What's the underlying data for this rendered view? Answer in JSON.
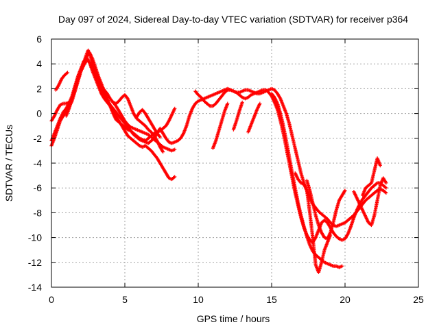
{
  "chart_data": {
    "type": "scatter",
    "title": "Day 097 of 2024, Sidereal Day-to-day VTEC variation (SDTVAR) for receiver p364",
    "xlabel": "GPS time / hours",
    "ylabel": "SDTVAR / TECUs",
    "xlim": [
      0,
      25
    ],
    "ylim": [
      -14,
      6
    ],
    "xticks": [
      "0",
      "5",
      "10",
      "15",
      "20",
      "25"
    ],
    "yticks": [
      "-14",
      "-12",
      "-10",
      "-8",
      "-6",
      "-4",
      "-2",
      "0",
      "2",
      "4",
      "6"
    ],
    "grid": true,
    "legend": "none",
    "marker": "plus",
    "color": "#ff0000",
    "series": [
      {
        "x": [
          0.0,
          0.2,
          0.4,
          0.6,
          0.8,
          1.0,
          1.2,
          1.4,
          1.6,
          1.8,
          2.0,
          2.2,
          2.4,
          2.5,
          2.6,
          2.8,
          3.0,
          3.2,
          3.4,
          3.6,
          3.8,
          4.0,
          4.2,
          4.4,
          4.6,
          4.8,
          5.0,
          5.2,
          5.4,
          5.6,
          5.8,
          6.0,
          6.2,
          6.4,
          6.6,
          6.8,
          7.0,
          7.2,
          7.4,
          7.6,
          7.8,
          8.0,
          8.2,
          8.4,
          8.6,
          8.8,
          9.0,
          9.2,
          9.4,
          9.6,
          9.8,
          10.0,
          10.2,
          10.4,
          10.6,
          10.8,
          11.0,
          11.2,
          11.4,
          11.6,
          11.8,
          12.0,
          12.2,
          12.4,
          12.6,
          12.8,
          13.0,
          13.2,
          13.4,
          13.6,
          13.8,
          14.0,
          14.2,
          14.4,
          14.6,
          14.8,
          15.0,
          15.2,
          15.4,
          15.6,
          15.8,
          16.0,
          16.2,
          16.4,
          16.6,
          16.8,
          17.0,
          17.2,
          17.4,
          17.6,
          17.8,
          18.0,
          18.2,
          18.4,
          18.6,
          18.8,
          19.0,
          19.2,
          19.4,
          19.6,
          19.8,
          20.0,
          20.2,
          20.4,
          20.6,
          20.8,
          21.0,
          21.2,
          21.4,
          21.6,
          21.8,
          22.0,
          22.2,
          22.4,
          22.6,
          22.8
        ],
        "y": [
          -2.6,
          -2.0,
          -1.3,
          -0.6,
          -0.2,
          0.2,
          0.5,
          1.0,
          1.8,
          2.6,
          3.4,
          4.1,
          4.8,
          5.1,
          4.8,
          4.0,
          3.2,
          2.6,
          2.0,
          1.5,
          1.1,
          0.7,
          0.4,
          0.1,
          -0.2,
          -0.5,
          -0.8,
          -1.1,
          -1.4,
          -1.7,
          -1.9,
          -2.1,
          -2.2,
          -2.3,
          -2.4,
          -2.2,
          -2.0,
          -1.6,
          -1.2,
          -1.6,
          -2.0,
          -2.3,
          -2.4,
          -2.3,
          -2.2,
          -2.0,
          -1.6,
          -1.0,
          -0.2,
          0.4,
          0.8,
          1.0,
          1.1,
          1.2,
          1.3,
          1.4,
          1.5,
          1.6,
          1.7,
          1.8,
          1.9,
          2.0,
          1.9,
          1.8,
          1.7,
          1.7,
          1.8,
          1.9,
          1.9,
          1.8,
          1.7,
          1.6,
          1.6,
          1.7,
          1.8,
          1.9,
          2.0,
          1.9,
          1.6,
          1.2,
          0.6,
          0.0,
          -0.8,
          -1.8,
          -2.8,
          -3.8,
          -4.8,
          -5.6,
          -6.2,
          -6.8,
          -7.3,
          -7.6,
          -7.9,
          -8.1,
          -8.3,
          -8.5,
          -8.8,
          -9.0,
          -9.1,
          -9.0,
          -8.9,
          -8.8,
          -8.6,
          -8.4,
          -8.2,
          -7.9,
          -7.6,
          -7.3,
          -7.0,
          -6.8,
          -6.6,
          -6.4,
          -6.2,
          -6.1,
          -6.2,
          -6.4
        ]
      },
      {
        "x": [
          0.0,
          0.2,
          0.4,
          0.6,
          0.8,
          1.0,
          1.2,
          1.4,
          1.6,
          1.8,
          2.0,
          2.2,
          2.4,
          2.6,
          2.8,
          3.0,
          3.2,
          3.4,
          3.6,
          3.8,
          4.0,
          4.2,
          4.4,
          4.6,
          4.8,
          5.0,
          5.2,
          5.4,
          5.6,
          5.8,
          6.0,
          6.2,
          6.4,
          6.6,
          6.8,
          7.0,
          7.2,
          7.4,
          7.6,
          7.8,
          8.0,
          8.2,
          8.4
        ],
        "y": [
          -2.2,
          -1.6,
          -1.0,
          -0.4,
          0.1,
          0.4,
          0.8,
          1.4,
          2.2,
          3.0,
          3.6,
          4.2,
          4.5,
          4.1,
          3.4,
          2.8,
          2.2,
          1.6,
          1.2,
          0.9,
          0.6,
          0.2,
          -0.2,
          -0.6,
          -1.0,
          -1.4,
          -1.8,
          -2.0,
          -2.2,
          -2.4,
          -2.6,
          -2.7,
          -2.6,
          -2.8,
          -3.0,
          -3.3,
          -3.6,
          -4.0,
          -4.4,
          -4.8,
          -5.2,
          -5.3,
          -5.1
        ]
      },
      {
        "x": [
          0.0,
          0.2,
          0.4,
          0.6,
          0.8,
          1.0,
          1.2,
          1.4,
          1.6,
          1.8,
          2.0,
          2.2,
          2.4,
          2.6,
          2.8,
          3.0,
          3.2,
          3.4,
          3.6,
          3.8,
          4.0,
          4.2,
          4.4,
          4.6,
          4.8,
          5.0,
          5.2,
          5.4,
          5.6,
          5.8,
          6.0,
          6.2,
          6.4,
          6.6,
          6.8,
          7.0,
          7.2,
          7.4,
          7.6,
          7.8,
          8.0,
          8.2,
          8.4
        ],
        "y": [
          -0.6,
          -0.2,
          0.3,
          0.7,
          0.8,
          0.8,
          0.9,
          1.2,
          1.8,
          2.6,
          3.4,
          3.9,
          4.3,
          4.1,
          3.6,
          3.0,
          2.5,
          2.2,
          1.9,
          1.6,
          1.2,
          0.9,
          0.6,
          0.2,
          -0.2,
          -0.6,
          -0.9,
          -1.1,
          -1.2,
          -1.3,
          -1.4,
          -1.5,
          -1.6,
          -1.7,
          -1.9,
          -2.1,
          -2.3,
          -2.5,
          -2.7,
          -2.8,
          -2.9,
          -3.0,
          -2.9
        ]
      },
      {
        "x": [
          0.3,
          0.5,
          0.7,
          0.9,
          1.1
        ],
        "y": [
          1.9,
          2.3,
          2.8,
          3.1,
          3.3
        ]
      },
      {
        "x": [
          1.0,
          1.2,
          1.4,
          1.6,
          1.8,
          2.0,
          2.2,
          2.4,
          2.6,
          2.8,
          3.0,
          3.2,
          3.4,
          3.6,
          3.8,
          4.0,
          4.2,
          4.4,
          4.6,
          4.8,
          5.0,
          5.2,
          5.4,
          5.6,
          5.8,
          6.0,
          6.2,
          6.4,
          6.6,
          6.8,
          7.0,
          7.2,
          7.4,
          7.6,
          7.8,
          8.0,
          8.2,
          8.4
        ],
        "y": [
          -0.2,
          0.4,
          1.2,
          2.0,
          2.8,
          3.4,
          3.9,
          4.6,
          4.9,
          4.4,
          3.7,
          3.0,
          2.4,
          1.8,
          1.2,
          0.6,
          0.0,
          -0.5,
          -0.7,
          -0.9,
          -1.1,
          -1.3,
          -1.4,
          -1.6,
          -1.8,
          -2.0,
          -2.1,
          -2.2,
          -2.0,
          -1.8,
          -1.6,
          -1.5,
          -1.4,
          -1.2,
          -1.0,
          -0.6,
          -0.1,
          0.4
        ]
      },
      {
        "x": [
          4.2,
          4.4,
          4.6,
          4.8,
          5.0,
          5.2,
          5.4,
          5.6,
          5.8,
          6.0,
          6.2,
          6.4,
          6.6,
          6.8,
          7.0,
          7.2,
          7.4,
          7.6
        ],
        "y": [
          0.9,
          0.8,
          1.0,
          1.3,
          1.5,
          1.2,
          0.6,
          0.0,
          -0.4,
          -0.6,
          -0.8,
          -1.0,
          -1.3,
          -1.5,
          -1.8,
          -2.2,
          -2.7,
          -3.1
        ]
      },
      {
        "x": [
          5.8,
          6.0,
          6.2,
          6.4,
          6.6,
          6.8,
          7.0,
          7.2,
          7.4
        ],
        "y": [
          -0.3,
          0.1,
          0.3,
          0.0,
          -0.4,
          -0.8,
          -1.2,
          -1.6,
          -1.9
        ]
      },
      {
        "x": [
          9.8,
          10.0,
          10.2,
          10.4,
          10.6,
          10.8,
          11.0,
          11.2,
          11.4,
          11.6,
          11.8,
          12.0,
          12.2,
          12.4,
          12.6,
          12.8,
          13.0,
          13.2,
          13.4,
          13.6,
          13.8,
          14.0,
          14.2,
          14.4,
          14.6,
          14.8,
          15.0,
          15.2,
          15.4,
          15.6,
          15.8,
          16.0,
          16.2,
          16.4,
          16.6,
          16.8,
          17.0,
          17.2,
          17.4,
          17.6,
          17.8,
          18.0,
          18.2,
          18.4,
          18.6,
          18.8,
          19.0,
          19.2,
          19.4,
          19.6,
          19.8,
          20.0,
          20.2,
          20.4,
          20.6,
          20.8,
          21.0,
          21.2,
          21.4,
          21.6,
          21.8,
          22.0,
          22.2,
          22.4,
          22.6,
          22.8
        ],
        "y": [
          1.8,
          1.5,
          1.3,
          1.0,
          0.8,
          0.6,
          0.6,
          0.8,
          1.1,
          1.4,
          1.7,
          1.9,
          1.9,
          1.8,
          1.7,
          1.5,
          1.3,
          1.2,
          1.3,
          1.5,
          1.6,
          1.7,
          1.8,
          1.9,
          1.9,
          1.7,
          1.4,
          0.9,
          0.3,
          -0.6,
          -1.6,
          -2.8,
          -4.0,
          -5.2,
          -6.4,
          -7.4,
          -8.4,
          -9.2,
          -9.8,
          -10.2,
          -10.4,
          -10.0,
          -9.4,
          -8.8,
          -8.6,
          -8.8,
          -9.2,
          -9.6,
          -9.9,
          -10.1,
          -10.2,
          -10.1,
          -9.7,
          -9.1,
          -8.4,
          -7.8,
          -7.3,
          -6.9,
          -6.6,
          -6.3,
          -6.0,
          -5.8,
          -5.6,
          -5.6,
          -5.8,
          -6.0
        ]
      },
      {
        "x": [
          15.0,
          15.2,
          15.4,
          15.6,
          15.8,
          16.0,
          16.2,
          16.4,
          16.6,
          16.8,
          17.0,
          17.2,
          17.4,
          17.6,
          17.8,
          18.0,
          18.2,
          18.4,
          18.6,
          18.8,
          19.0,
          19.2,
          19.4,
          19.6,
          19.8
        ],
        "y": [
          1.6,
          1.3,
          0.8,
          0.0,
          -1.0,
          -2.2,
          -3.5,
          -4.8,
          -6.0,
          -7.2,
          -8.2,
          -9.1,
          -9.9,
          -10.6,
          -11.1,
          -11.4,
          -11.6,
          -11.8,
          -12.0,
          -12.1,
          -12.2,
          -12.3,
          -12.3,
          -12.4,
          -12.3
        ]
      },
      {
        "x": [
          16.6,
          16.8,
          17.0,
          17.2,
          17.4,
          17.6,
          17.8,
          18.0,
          18.2,
          18.4,
          18.6,
          18.8,
          19.0
        ],
        "y": [
          -4.8,
          -5.3,
          -5.6,
          -5.7,
          -6.2,
          -8.0,
          -10.0,
          -12.2,
          -12.8,
          -12.0,
          -11.0,
          -10.4,
          -9.8
        ]
      },
      {
        "x": [
          17.4,
          17.6,
          17.8,
          18.0,
          18.2,
          18.4,
          18.6,
          18.8,
          19.0,
          19.2,
          19.4,
          19.6,
          19.8,
          20.0
        ],
        "y": [
          -5.4,
          -6.2,
          -7.2,
          -8.2,
          -9.0,
          -9.6,
          -10.0,
          -10.1,
          -9.6,
          -8.8,
          -7.8,
          -7.0,
          -6.6,
          -6.2
        ]
      },
      {
        "x": [
          11.0,
          11.2,
          11.4,
          11.6,
          11.8,
          12.0
        ],
        "y": [
          -2.8,
          -2.2,
          -1.4,
          -0.6,
          0.2,
          0.8
        ]
      },
      {
        "x": [
          12.4,
          12.6,
          12.8,
          13.0
        ],
        "y": [
          -1.3,
          -0.6,
          0.2,
          0.9
        ]
      },
      {
        "x": [
          13.4,
          13.6,
          13.8,
          14.0,
          14.2
        ],
        "y": [
          -1.5,
          -0.9,
          -0.3,
          0.3,
          0.8
        ]
      },
      {
        "x": [
          20.6,
          20.8,
          21.0,
          21.2,
          21.4,
          21.6,
          21.8,
          22.0,
          22.2,
          22.4,
          22.6,
          22.8
        ],
        "y": [
          -6.3,
          -6.8,
          -7.3,
          -7.8,
          -8.3,
          -8.8,
          -9.0,
          -8.2,
          -7.0,
          -5.8,
          -5.2,
          -5.6
        ]
      },
      {
        "x": [
          21.2,
          21.4,
          21.6,
          21.8,
          22.0,
          22.2,
          22.4
        ],
        "y": [
          -6.6,
          -6.0,
          -5.8,
          -5.6,
          -4.6,
          -3.6,
          -4.2
        ]
      }
    ]
  }
}
